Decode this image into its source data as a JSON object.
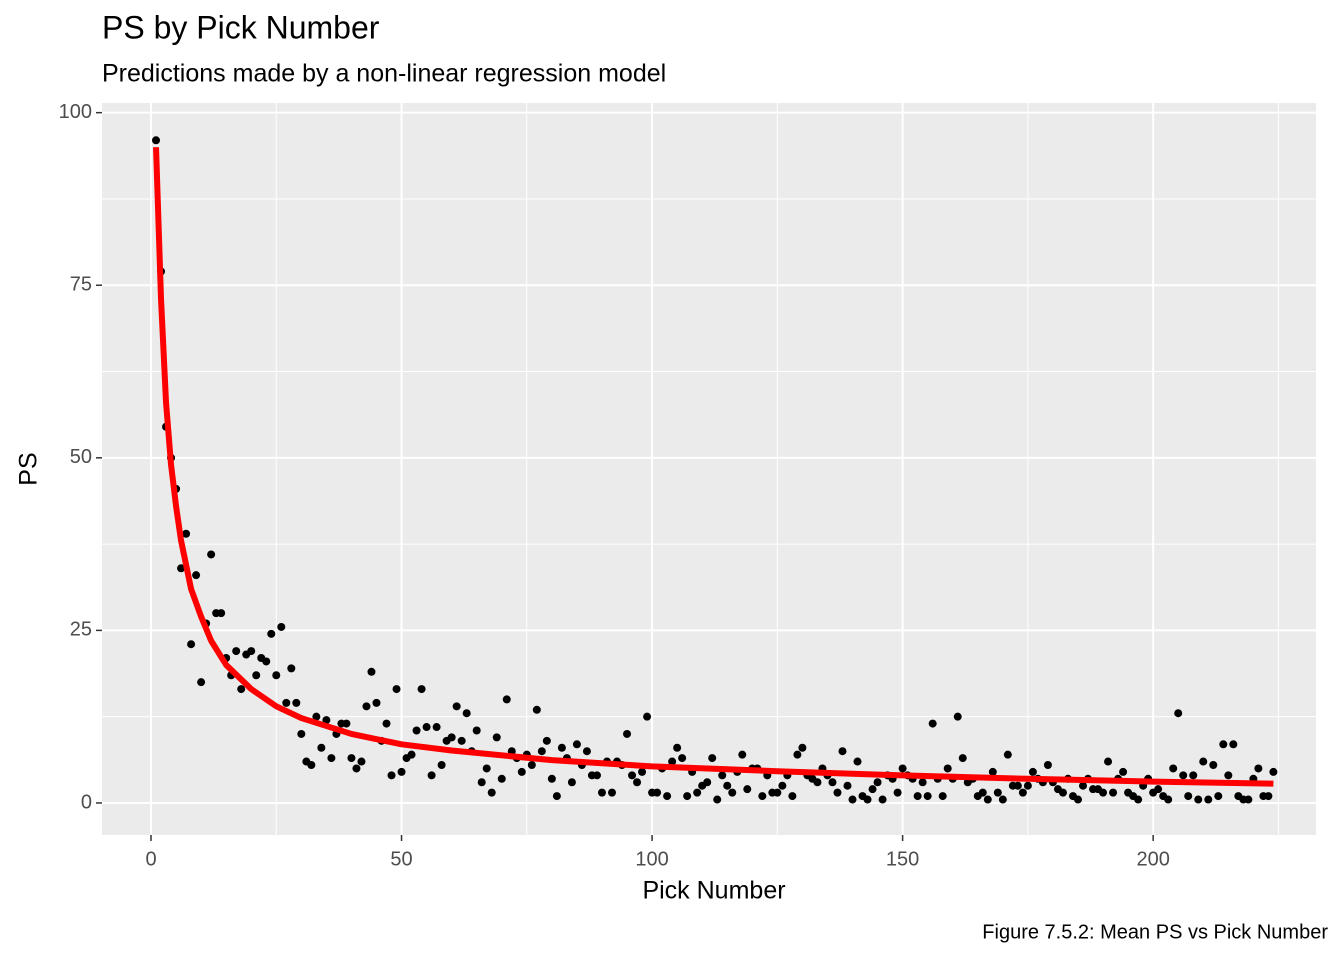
{
  "chart_data": {
    "type": "scatter",
    "title": "PS by Pick Number",
    "subtitle": "Predictions made by a non-linear regression model",
    "x_label": "Pick Number",
    "y_label": "PS",
    "caption": "Figure 7.5.2: Mean PS vs Pick Number",
    "xlim": [
      -9.78,
      232.5
    ],
    "ylim": [
      -4.64,
      101.4
    ],
    "xticks": [
      0,
      50,
      100,
      150,
      200
    ],
    "yticks": [
      0,
      25,
      50,
      75,
      100
    ],
    "xminor": [
      25,
      75,
      125,
      175,
      225
    ],
    "yminor": [
      12.5,
      37.5,
      62.5,
      87.5
    ],
    "grid": true,
    "series": [
      {
        "type": "scatter",
        "color": "#000000",
        "x": [
          1,
          2,
          3,
          4,
          5,
          6,
          7,
          8,
          9,
          10,
          11,
          12,
          13,
          14,
          15,
          16,
          17,
          18,
          19,
          20,
          21,
          22,
          23,
          24,
          25,
          26,
          27,
          28,
          29,
          30,
          31,
          32,
          33,
          34,
          35,
          36,
          37,
          38,
          39,
          40,
          41,
          42,
          43,
          44,
          45,
          46,
          47,
          48,
          49,
          50,
          51,
          52,
          53,
          54,
          55,
          56,
          57,
          58,
          59,
          60,
          61,
          62,
          63,
          64,
          65,
          66,
          67,
          68,
          69,
          70,
          71,
          72,
          73,
          74,
          75,
          76,
          77,
          78,
          79,
          80,
          81,
          82,
          83,
          84,
          85,
          86,
          87,
          88,
          89,
          90,
          91,
          92,
          93,
          94,
          95,
          96,
          97,
          98,
          99,
          100,
          101,
          102,
          103,
          104,
          105,
          106,
          107,
          108,
          109,
          110,
          111,
          112,
          113,
          114,
          115,
          116,
          117,
          118,
          119,
          120,
          121,
          122,
          123,
          124,
          125,
          126,
          127,
          128,
          129,
          130,
          131,
          132,
          133,
          134,
          135,
          136,
          137,
          138,
          139,
          140,
          141,
          142,
          143,
          144,
          145,
          146,
          147,
          148,
          149,
          150,
          151,
          152,
          153,
          154,
          155,
          156,
          157,
          158,
          159,
          160,
          161,
          162,
          163,
          164,
          165,
          166,
          167,
          168,
          169,
          170,
          171,
          172,
          173,
          174,
          175,
          176,
          177,
          178,
          179,
          180,
          181,
          182,
          183,
          184,
          185,
          186,
          187,
          188,
          189,
          190,
          191,
          192,
          193,
          194,
          195,
          196,
          197,
          198,
          199,
          200,
          201,
          202,
          203,
          204,
          205,
          206,
          207,
          208,
          209,
          210,
          211,
          212,
          213,
          214,
          215,
          216,
          217,
          218,
          219,
          220,
          221,
          222,
          223,
          224
        ],
        "values": [
          96,
          77,
          54.5,
          50,
          45.5,
          34,
          39,
          23,
          33,
          17.5,
          26,
          36,
          27.5,
          27.5,
          21,
          18.5,
          22,
          16.5,
          21.5,
          22,
          18.5,
          21,
          20.5,
          24.5,
          18.5,
          25.5,
          14.5,
          19.5,
          14.5,
          10,
          6,
          5.5,
          12.5,
          8,
          12,
          6.5,
          10,
          11.5,
          11.5,
          6.5,
          5,
          6,
          14,
          19,
          14.5,
          9,
          11.5,
          4,
          16.5,
          4.5,
          6.5,
          7,
          10.5,
          16.5,
          11,
          4,
          11,
          5.5,
          9,
          9.5,
          14,
          9,
          13,
          7.5,
          10.5,
          3,
          5,
          1.5,
          9.5,
          3.5,
          15,
          7.5,
          6.5,
          4.5,
          7,
          5.5,
          13.5,
          7.5,
          9,
          3.5,
          1,
          8,
          6.5,
          3,
          8.5,
          5.5,
          7.5,
          4,
          4,
          1.5,
          6,
          1.5,
          6,
          5.5,
          10,
          4,
          3,
          4.5,
          12.5,
          1.5,
          1.5,
          5,
          1,
          6,
          8,
          6.5,
          1,
          4.5,
          1.5,
          2.5,
          3,
          6.5,
          0.5,
          4,
          2.5,
          1.5,
          4.5,
          7,
          2,
          5,
          5,
          1,
          4,
          1.5,
          1.5,
          2.5,
          4,
          1,
          7,
          8,
          4,
          3.5,
          3,
          5,
          4,
          3,
          1.5,
          7.5,
          2.5,
          0.5,
          6,
          1,
          0.5,
          2,
          3,
          0.5,
          4,
          3.5,
          1.5,
          5,
          4,
          3.5,
          1,
          3,
          1,
          11.5,
          3.5,
          1,
          5,
          3.5,
          12.5,
          6.5,
          3,
          3.5,
          1,
          1.5,
          0.5,
          4.5,
          1.5,
          0.5,
          7,
          2.5,
          2.5,
          1.5,
          2.5,
          4.5,
          3.5,
          3,
          5.5,
          3,
          2,
          1.5,
          3.5,
          1,
          0.5,
          2.5,
          3.5,
          2,
          2,
          1.5,
          6,
          1.5,
          3.5,
          4.5,
          1.5,
          1,
          0.5,
          2.5,
          3.5,
          1.5,
          2,
          1,
          0.5,
          5,
          13,
          4,
          1,
          4,
          0.5,
          6,
          0.5,
          5.5,
          1,
          8.5,
          4,
          8.5,
          1,
          0.5,
          0.5,
          3.5,
          5,
          1,
          1,
          4.5
        ]
      },
      {
        "type": "line",
        "color": "#ff0000",
        "x": [
          1,
          2,
          3,
          4,
          5,
          6,
          8,
          10,
          12,
          15,
          20,
          25,
          30,
          40,
          50,
          60,
          80,
          100,
          125,
          150,
          175,
          200,
          224
        ],
        "values": [
          95,
          73,
          58,
          49,
          43,
          38,
          31,
          27,
          23.5,
          20,
          16.5,
          14,
          12.3,
          10,
          8.5,
          7.6,
          6.2,
          5.3,
          4.6,
          4,
          3.5,
          3.1,
          2.8
        ]
      }
    ]
  }
}
